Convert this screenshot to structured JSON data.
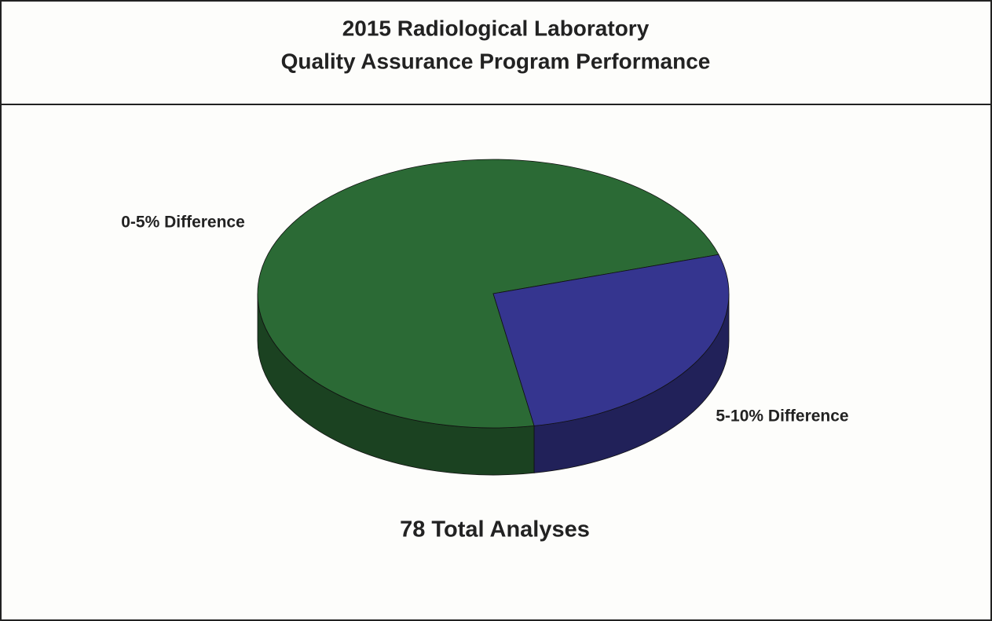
{
  "chart_data": {
    "type": "pie",
    "title": "2015 Radiological Laboratory",
    "subtitle": "Quality Assurance Program Performance",
    "categories": [
      "0-5% Difference",
      "5-10% Difference"
    ],
    "values": [
      57,
      21
    ],
    "colors": [
      "#2b6a35",
      "#35358f"
    ],
    "annotation": "78 Total Analyses"
  }
}
